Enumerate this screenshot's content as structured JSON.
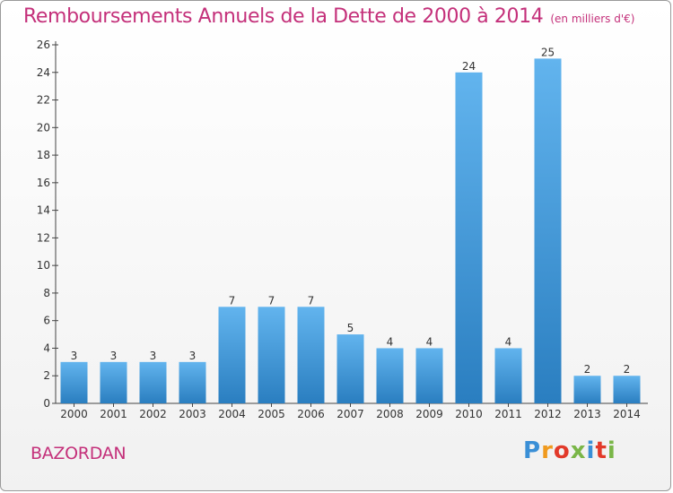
{
  "header": {
    "title": "Remboursements Annuels de la Dette de 2000 à 2014",
    "unit": "(en milliers d'€)"
  },
  "footer": {
    "city": "BAZORDAN",
    "logo_letters": [
      "P",
      "r",
      "o",
      "x",
      "i",
      "t",
      "i"
    ],
    "logo_colors": [
      "#3a8fd6",
      "#f09a1e",
      "#e23a2a",
      "#7ab648",
      "#3a8fd6",
      "#e23a2a",
      "#7ab648"
    ]
  },
  "colors": {
    "title": "#c4307a",
    "bar_light": "#62b4ee",
    "bar_dark": "#2a7ec0",
    "axis": "#444444"
  },
  "chart_data": {
    "type": "bar",
    "categories": [
      "2000",
      "2001",
      "2002",
      "2003",
      "2004",
      "2005",
      "2006",
      "2007",
      "2008",
      "2009",
      "2010",
      "2011",
      "2012",
      "2013",
      "2014"
    ],
    "values": [
      3,
      3,
      3,
      3,
      7,
      7,
      7,
      5,
      4,
      4,
      24,
      4,
      25,
      2,
      2
    ],
    "yticks": [
      0,
      2,
      4,
      6,
      8,
      10,
      12,
      14,
      16,
      18,
      20,
      22,
      24,
      26
    ],
    "ylim": [
      0,
      26
    ],
    "title": "Remboursements Annuels de la Dette de 2000 à 2014",
    "xlabel": "",
    "ylabel": "",
    "data_labels": true,
    "grid": false
  }
}
